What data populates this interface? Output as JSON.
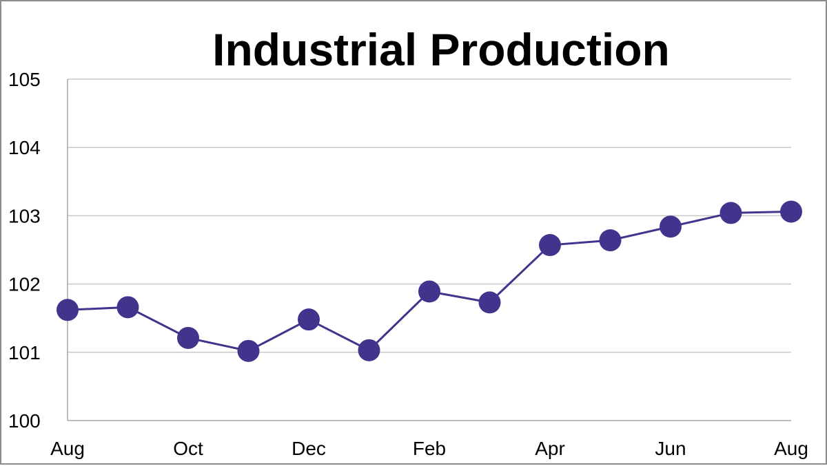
{
  "chart_data": {
    "type": "line",
    "title": "Industrial Production",
    "xlabel": "",
    "ylabel": "",
    "ylim": [
      100,
      105
    ],
    "yticks": [
      100,
      101,
      102,
      103,
      104,
      105
    ],
    "xtick_labels": [
      {
        "index": 0,
        "label": "Aug"
      },
      {
        "index": 2,
        "label": "Oct"
      },
      {
        "index": 4,
        "label": "Dec"
      },
      {
        "index": 6,
        "label": "Feb"
      },
      {
        "index": 8,
        "label": "Apr"
      },
      {
        "index": 10,
        "label": "Jun"
      },
      {
        "index": 12,
        "label": "Aug"
      }
    ],
    "series": [
      {
        "values": [
          101.62,
          101.66,
          101.21,
          101.02,
          101.48,
          101.03,
          101.89,
          101.73,
          102.57,
          102.64,
          102.84,
          103.04,
          103.06
        ]
      }
    ],
    "grid": true,
    "legend": "none",
    "colors": {
      "series": "#43338c",
      "grid": "#c8c8c8",
      "axis": "#a6a6a6"
    }
  }
}
